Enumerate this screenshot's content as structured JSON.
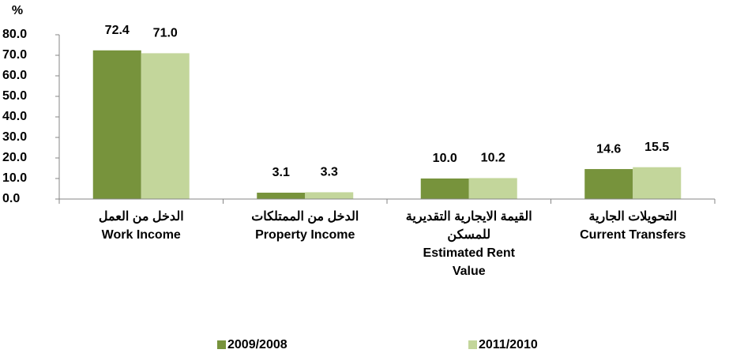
{
  "chart_data": {
    "type": "bar",
    "y_label": "%",
    "categories": [
      [
        "الدخل من العمل",
        "Work Income"
      ],
      [
        "الدخل من الممتلكات",
        "Property Income"
      ],
      [
        "القيمة الايجارية التقديرية",
        "للمسكن",
        "Estimated Rent",
        "Value"
      ],
      [
        "التحويلات الجارية",
        "Current Transfers"
      ]
    ],
    "series": [
      {
        "name": "2009/2008",
        "color": "#77933c",
        "values": [
          72.4,
          3.1,
          10.0,
          14.6
        ],
        "value_labels": [
          "72.4",
          "3.1",
          "10.0",
          "14.6"
        ]
      },
      {
        "name": "2011/2010",
        "color": "#c3d69b",
        "values": [
          71.0,
          3.3,
          10.2,
          15.5
        ],
        "value_labels": [
          "71.0",
          "3.3",
          "10.2",
          "15.5"
        ]
      }
    ],
    "ylim": [
      0,
      80
    ],
    "yticks": [
      {
        "value": 0,
        "label": "0.0"
      },
      {
        "value": 10,
        "label": "10.0"
      },
      {
        "value": 20,
        "label": "20.0"
      },
      {
        "value": 30,
        "label": "30.0"
      },
      {
        "value": 40,
        "label": "40.0"
      },
      {
        "value": 50,
        "label": "50.0"
      },
      {
        "value": 60,
        "label": "60.0"
      },
      {
        "value": 70,
        "label": "70.0"
      },
      {
        "value": 80,
        "label": "80.0"
      }
    ],
    "grid": false,
    "legend": "bottom"
  }
}
